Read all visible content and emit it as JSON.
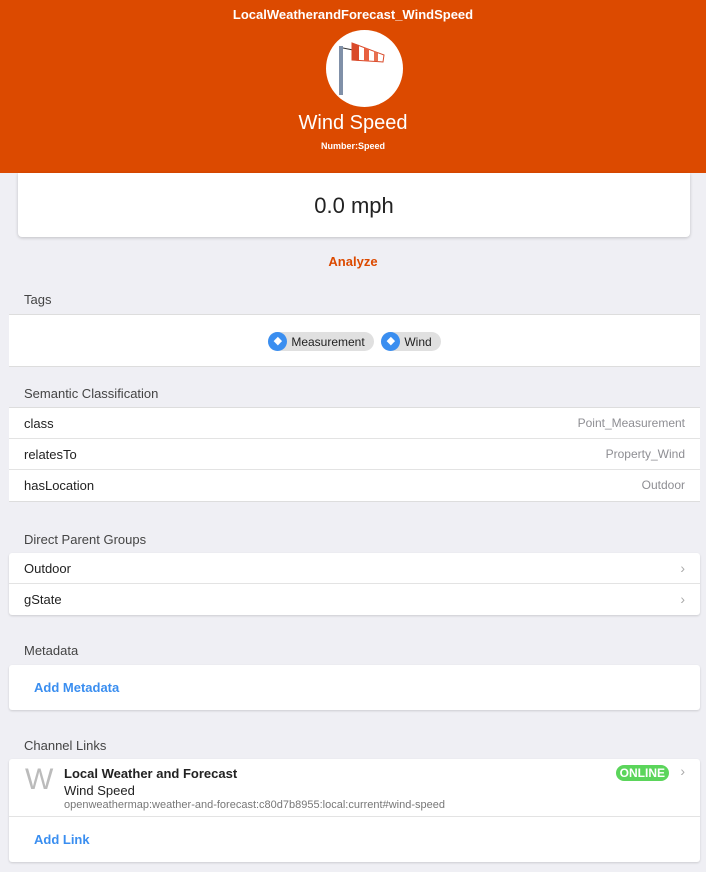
{
  "header": {
    "item_name": "LocalWeatherandForecast_WindSpeed",
    "label": "Wind Speed",
    "type": "Number:Speed",
    "icon": "windsock-icon",
    "color": "#dc4a00"
  },
  "state": "0.0 mph",
  "analyze": "Analyze",
  "tags": {
    "title": "Tags",
    "items": [
      "Measurement",
      "Wind"
    ]
  },
  "semantic": {
    "title": "Semantic Classification",
    "rows": [
      {
        "key": "class",
        "value": "Point_Measurement"
      },
      {
        "key": "relatesTo",
        "value": "Property_Wind"
      },
      {
        "key": "hasLocation",
        "value": "Outdoor"
      }
    ]
  },
  "groups": {
    "title": "Direct Parent Groups",
    "items": [
      "Outdoor",
      "gState"
    ]
  },
  "metadata": {
    "title": "Metadata",
    "add": "Add Metadata"
  },
  "channels": {
    "title": "Channel Links",
    "link": {
      "letter": "W",
      "thing": "Local Weather and Forecast",
      "channel": "Wind Speed",
      "uid": "openweathermap:weather-and-forecast:c80d7b8955:local:current#wind-speed",
      "status": "ONLINE"
    },
    "add": "Add Link"
  }
}
